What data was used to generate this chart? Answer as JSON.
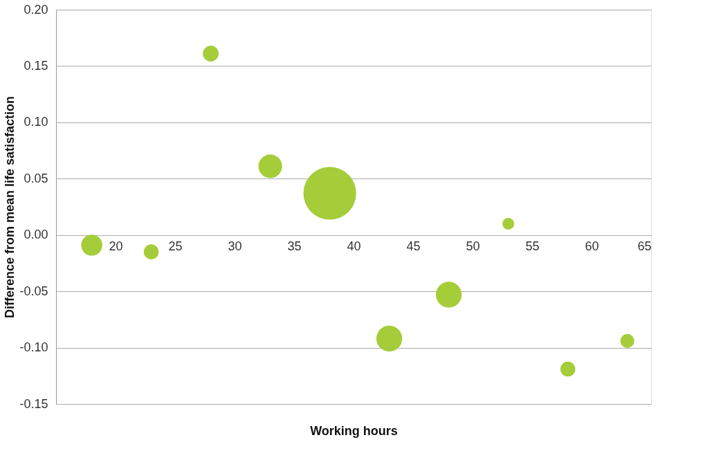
{
  "chart_data": {
    "type": "bubble",
    "xlabel": "Working hours",
    "ylabel": "Difference from mean life satisfaction",
    "x": [
      18,
      23,
      28,
      33,
      38,
      43,
      48,
      53,
      58,
      63
    ],
    "values": [
      -0.009,
      -0.015,
      0.161,
      0.061,
      0.037,
      -0.092,
      -0.053,
      0.01,
      -0.119,
      -0.094
    ],
    "sizes": [
      0.16,
      0.08,
      0.09,
      0.2,
      1,
      0.24,
      0.24,
      0.05,
      0.08,
      0.07
    ],
    "color": "#a4cd39",
    "xlim": [
      15,
      65
    ],
    "xticks": [
      20,
      25,
      30,
      35,
      40,
      45,
      50,
      55,
      60,
      65
    ],
    "ylim": [
      -0.15,
      0.2
    ],
    "yticks": [
      {
        "value": -0.15,
        "label": "-0.15"
      },
      {
        "value": -0.1,
        "label": "-0.10"
      },
      {
        "value": -0.05,
        "label": "-0.05"
      },
      {
        "value": 0,
        "label": "0.00"
      },
      {
        "value": 0.05,
        "label": "0.05"
      },
      {
        "value": 0.1,
        "label": "0.10"
      },
      {
        "value": 0.15,
        "label": "0.15"
      },
      {
        "value": 0.2,
        "label": "0.20"
      }
    ],
    "grid": "y",
    "legend": false
  }
}
